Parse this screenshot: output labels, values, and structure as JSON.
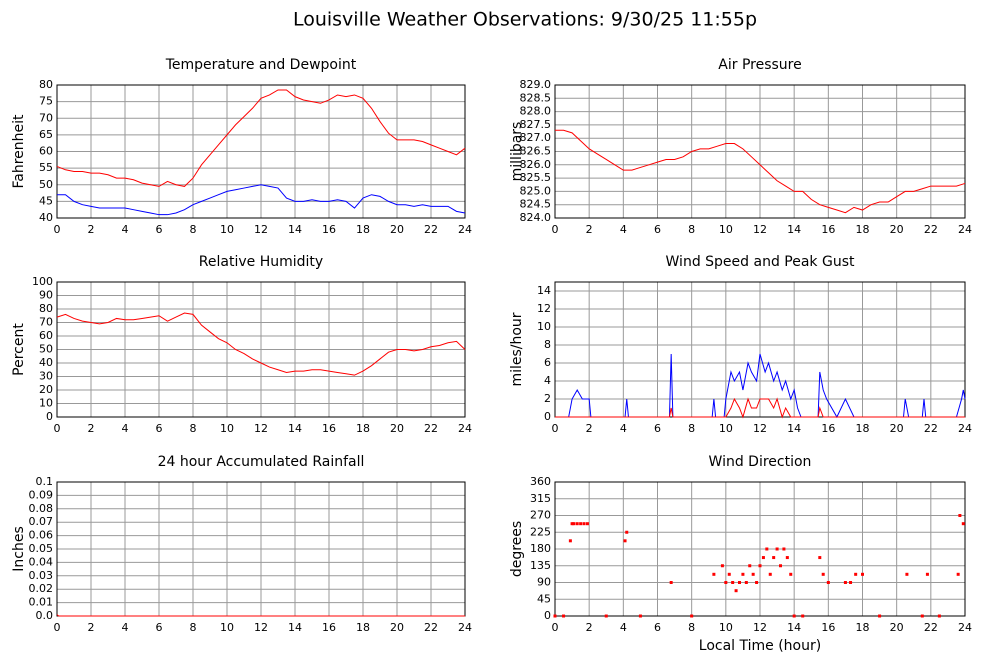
{
  "title": "Louisville Weather Observations: 9/30/25 11:55p",
  "chart_data": [
    {
      "type": "line",
      "title": "Temperature and Dewpoint",
      "ylabel": "Fahrenheit",
      "x": [
        0,
        0.5,
        1,
        1.5,
        2,
        2.5,
        3,
        3.5,
        4,
        4.5,
        5,
        5.5,
        6,
        6.5,
        7,
        7.5,
        8,
        8.5,
        9,
        9.5,
        10,
        10.5,
        11,
        11.5,
        12,
        12.5,
        13,
        13.5,
        14,
        14.5,
        15,
        15.5,
        16,
        16.5,
        17,
        17.5,
        18,
        18.5,
        19,
        19.5,
        20,
        20.5,
        21,
        21.5,
        22,
        22.5,
        23,
        23.5,
        24
      ],
      "series": [
        {
          "color": "#ff0000",
          "values": [
            55.5,
            54.5,
            54,
            54,
            53.5,
            53.5,
            53,
            52,
            52,
            51.5,
            50.5,
            50,
            49.5,
            51,
            50,
            49.5,
            52,
            56,
            59,
            62,
            65,
            68,
            70.5,
            73,
            76,
            77,
            78.5,
            78.5,
            76.5,
            75.5,
            75,
            74.5,
            75.5,
            77,
            76.5,
            77,
            76,
            73,
            69,
            65.5,
            63.5,
            63.5,
            63.5,
            63,
            62,
            61,
            60,
            59,
            61
          ]
        },
        {
          "color": "#0000ff",
          "values": [
            47,
            47,
            45,
            44,
            43.5,
            43,
            43,
            43,
            43,
            42.5,
            42,
            41.5,
            41,
            41,
            41.5,
            42.5,
            44,
            45,
            46,
            47,
            48,
            48.5,
            49,
            49.5,
            50,
            49.5,
            49,
            46,
            45,
            45,
            45.5,
            45,
            45,
            45.5,
            45,
            43,
            46,
            47,
            46.5,
            45,
            44,
            44,
            43.5,
            44,
            43.5,
            43.5,
            43.5,
            42,
            41.5
          ]
        }
      ],
      "xlim": [
        0,
        24
      ],
      "xticks": [
        0,
        2,
        4,
        6,
        8,
        10,
        12,
        14,
        16,
        18,
        20,
        22,
        24
      ],
      "ylim": [
        40,
        80
      ],
      "yticks": [
        40,
        45,
        50,
        55,
        60,
        65,
        70,
        75,
        80
      ],
      "grid": true
    },
    {
      "type": "line",
      "title": "Air Pressure",
      "ylabel": "millibars",
      "x": [
        0,
        0.5,
        1,
        1.5,
        2,
        2.5,
        3,
        3.5,
        4,
        4.5,
        5,
        5.5,
        6,
        6.5,
        7,
        7.5,
        8,
        8.5,
        9,
        9.5,
        10,
        10.5,
        11,
        11.5,
        12,
        12.5,
        13,
        13.5,
        14,
        14.5,
        15,
        15.5,
        16,
        16.5,
        17,
        17.5,
        18,
        18.5,
        19,
        19.5,
        20,
        20.5,
        21,
        21.5,
        22,
        22.5,
        23,
        23.5,
        24
      ],
      "series": [
        {
          "color": "#ff0000",
          "values": [
            827.3,
            827.3,
            827.2,
            826.9,
            826.6,
            826.4,
            826.2,
            826.0,
            825.8,
            825.8,
            825.9,
            826.0,
            826.1,
            826.2,
            826.2,
            826.3,
            826.5,
            826.6,
            826.6,
            826.7,
            826.8,
            826.8,
            826.6,
            826.3,
            826.0,
            825.7,
            825.4,
            825.2,
            825.0,
            825.0,
            824.7,
            824.5,
            824.4,
            824.3,
            824.2,
            824.4,
            824.3,
            824.5,
            824.6,
            824.6,
            824.8,
            825.0,
            825.0,
            825.1,
            825.2,
            825.2,
            825.2,
            825.2,
            825.3
          ]
        }
      ],
      "xlim": [
        0,
        24
      ],
      "xticks": [
        0,
        2,
        4,
        6,
        8,
        10,
        12,
        14,
        16,
        18,
        20,
        22,
        24
      ],
      "ylim": [
        824,
        829
      ],
      "yticks": [
        {
          "value": 824,
          "label": "824.0"
        },
        824.5,
        {
          "value": 825,
          "label": "825.0"
        },
        825.5,
        {
          "value": 826,
          "label": "826.0"
        },
        826.5,
        {
          "value": 827,
          "label": "827.0"
        },
        827.5,
        {
          "value": 828,
          "label": "828.0"
        },
        828.5,
        {
          "value": 829,
          "label": "829.0"
        }
      ],
      "grid": true
    },
    {
      "type": "line",
      "title": "Relative Humidity",
      "ylabel": "Percent",
      "x": [
        0,
        0.5,
        1,
        1.5,
        2,
        2.5,
        3,
        3.5,
        4,
        4.5,
        5,
        5.5,
        6,
        6.5,
        7,
        7.5,
        8,
        8.5,
        9,
        9.5,
        10,
        10.5,
        11,
        11.5,
        12,
        12.5,
        13,
        13.5,
        14,
        14.5,
        15,
        15.5,
        16,
        16.5,
        17,
        17.5,
        18,
        18.5,
        19,
        19.5,
        20,
        20.5,
        21,
        21.5,
        22,
        22.5,
        23,
        23.5,
        24
      ],
      "series": [
        {
          "color": "#ff0000",
          "values": [
            74,
            76,
            73,
            71,
            70,
            69,
            70,
            73,
            72,
            72,
            73,
            74,
            75,
            71,
            74,
            77,
            76,
            68,
            63,
            58,
            55,
            50,
            47,
            43,
            40,
            37,
            35,
            33,
            34,
            34,
            35,
            35,
            34,
            33,
            32,
            31,
            34,
            38,
            43,
            48,
            50,
            50,
            49,
            50,
            52,
            53,
            55,
            56,
            50
          ]
        }
      ],
      "xlim": [
        0,
        24
      ],
      "xticks": [
        0,
        2,
        4,
        6,
        8,
        10,
        12,
        14,
        16,
        18,
        20,
        22,
        24
      ],
      "ylim": [
        0,
        100
      ],
      "yticks": [
        0,
        10,
        20,
        30,
        40,
        50,
        60,
        70,
        80,
        90,
        100
      ],
      "grid": true
    },
    {
      "type": "line",
      "title": "Wind Speed and Peak Gust",
      "ylabel": "miles/hour",
      "x": [
        0,
        0.8,
        1.0,
        1.3,
        1.6,
        1.8,
        2.0,
        2.1,
        4.1,
        4.2,
        4.3,
        6.7,
        6.8,
        6.9,
        9.2,
        9.3,
        9.4,
        9.9,
        10.0,
        10.3,
        10.5,
        10.8,
        11.0,
        11.3,
        11.5,
        11.8,
        12.0,
        12.3,
        12.5,
        12.8,
        13.0,
        13.3,
        13.5,
        13.8,
        14.0,
        14.2,
        14.4,
        15.4,
        15.5,
        15.7,
        15.9,
        16.5,
        17.0,
        17.5,
        18.0,
        20.4,
        20.5,
        20.7,
        21.5,
        21.6,
        21.7,
        22.4,
        23.5,
        23.8,
        23.9,
        24
      ],
      "series": [
        {
          "color": "#0000ff",
          "values": [
            0,
            0,
            2,
            3,
            2,
            2,
            2,
            0,
            0,
            2,
            0,
            0,
            7,
            0,
            0,
            2,
            0,
            0,
            2,
            5,
            4,
            5,
            3,
            6,
            5,
            4,
            7,
            5,
            6,
            4,
            5,
            3,
            4,
            2,
            3,
            1,
            0,
            0,
            5,
            3,
            2,
            0,
            2,
            0,
            0,
            0,
            2,
            0,
            0,
            2,
            0,
            0,
            0,
            2,
            3,
            2
          ]
        },
        {
          "color": "#ff0000",
          "values": [
            0,
            0,
            0,
            0,
            0,
            0,
            0,
            0,
            0,
            0,
            0,
            0,
            1,
            0,
            0,
            0,
            0,
            0,
            0,
            1,
            2,
            1,
            0,
            2,
            1,
            1,
            2,
            2,
            2,
            1,
            2,
            0,
            1,
            0,
            0,
            0,
            0,
            0,
            1,
            0,
            0,
            0,
            0,
            0,
            0,
            0,
            0,
            0,
            0,
            0,
            0,
            0,
            0,
            0,
            0,
            0
          ]
        }
      ],
      "xlim": [
        0,
        24
      ],
      "xticks": [
        0,
        2,
        4,
        6,
        8,
        10,
        12,
        14,
        16,
        18,
        20,
        22,
        24
      ],
      "ylim": [
        0,
        15
      ],
      "yticks": [
        0,
        2,
        4,
        6,
        8,
        10,
        12,
        14
      ],
      "grid": true
    },
    {
      "type": "line",
      "title": "24 hour Accumulated Rainfall",
      "ylabel": "Inches",
      "x": [
        0,
        0.1,
        24
      ],
      "series": [
        {
          "color": "#ff0000",
          "values": [
            0.001,
            0,
            0
          ]
        }
      ],
      "xlim": [
        0,
        24
      ],
      "xticks": [
        0,
        2,
        4,
        6,
        8,
        10,
        12,
        14,
        16,
        18,
        20,
        22,
        24
      ],
      "ylim": [
        0,
        0.1
      ],
      "yticks": [
        {
          "value": 0,
          "label": "0.0"
        },
        0.01,
        0.02,
        0.03,
        0.04,
        0.05,
        0.06,
        0.07,
        0.08,
        0.09,
        0.1
      ],
      "grid": true
    },
    {
      "type": "scatter",
      "title": "Wind Direction",
      "ylabel": "degrees",
      "xlabel": "Local Time (hour)",
      "x": [
        0,
        0.5,
        0.9,
        1.0,
        1.1,
        1.3,
        1.5,
        1.7,
        1.9,
        3,
        4.1,
        4.2,
        5,
        6.8,
        8,
        9.3,
        9.8,
        10.0,
        10.2,
        10.4,
        10.6,
        10.8,
        11.0,
        11.2,
        11.4,
        11.6,
        11.8,
        12.0,
        12.2,
        12.4,
        12.6,
        12.8,
        13.0,
        13.2,
        13.4,
        13.6,
        13.8,
        14.0,
        14.5,
        15.5,
        15.7,
        16.0,
        17.0,
        17.3,
        17.6,
        18.0,
        19,
        20.6,
        21.5,
        21.8,
        22.5,
        23.6,
        23.7,
        23.9
      ],
      "series": [
        {
          "color": "#ff0000",
          "values": [
            0,
            0,
            202,
            248,
            248,
            248,
            248,
            248,
            248,
            0,
            202,
            225,
            0,
            90,
            0,
            112,
            135,
            90,
            112,
            90,
            68,
            90,
            112,
            90,
            135,
            112,
            90,
            135,
            157,
            180,
            112,
            157,
            180,
            135,
            180,
            157,
            112,
            0,
            0,
            157,
            112,
            90,
            90,
            90,
            112,
            112,
            0,
            112,
            0,
            112,
            0,
            112,
            270,
            248
          ]
        }
      ],
      "xlim": [
        0,
        24
      ],
      "xticks": [
        0,
        2,
        4,
        6,
        8,
        10,
        12,
        14,
        16,
        18,
        20,
        22,
        24
      ],
      "ylim": [
        0,
        360
      ],
      "yticks": [
        0,
        45,
        90,
        135,
        180,
        225,
        270,
        315,
        360
      ],
      "grid": true
    }
  ]
}
